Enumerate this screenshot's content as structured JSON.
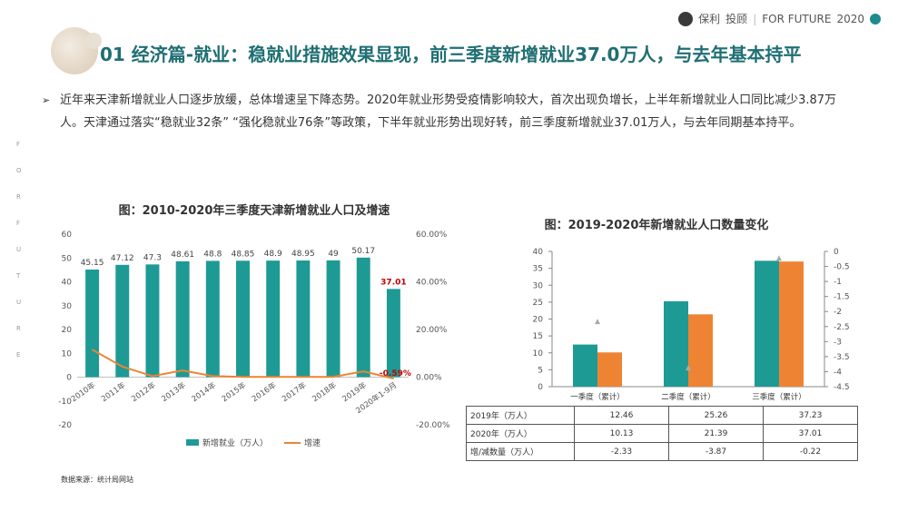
{
  "header": {
    "section": "01 经济篇-就业：",
    "headline": "稳就业措施效果显现，前三季度新增就业37.0万人，与去年基本持平",
    "brand_name": "保利",
    "brand_sub": "投顾",
    "tagline": "FOR FUTURE",
    "year": "2020"
  },
  "side_letters": [
    "F",
    "O",
    "R",
    "F",
    "U",
    "T",
    "U",
    "R",
    "E"
  ],
  "paragraph": {
    "bullet": "➢",
    "text": "近年来天津新增就业人口逐步放缓，总体增速呈下降态势。2020年就业形势受疫情影响较大，首次出现负增长，上半年新增就业人口同比减少3.87万人。天津通过落实“稳就业32条”  “强化稳就业76条”等政策，下半年就业形势出现好转，前三季度新增就业37.01万人，与去年同期基本持平。"
  },
  "source": "数据来源：统计局网站",
  "colors": {
    "teal": "#1e9a95",
    "orange": "#ee8433",
    "title": "#1f6f73",
    "gray_marker": "#a9a9a9"
  },
  "chart_data": [
    {
      "type": "bar",
      "title": "图：2010-2020年三季度天津新增就业人口及增速",
      "categories": [
        "2010年",
        "2011年",
        "2012年",
        "2013年",
        "2014年",
        "2015年",
        "2016年",
        "2017年",
        "2018年",
        "2019年",
        "2020年1-9月"
      ],
      "series": [
        {
          "name": "新增就业（万人）",
          "type": "bar",
          "axis": "left",
          "values": [
            45.15,
            47.12,
            47.3,
            48.61,
            48.8,
            48.85,
            48.9,
            48.95,
            49,
            50.17,
            37.01
          ],
          "labels": [
            "45.15",
            "47.12",
            "47.3",
            "48.61",
            "48.8",
            "48.85",
            "48.9",
            "48.95",
            "49",
            "50.17",
            "37.01"
          ]
        },
        {
          "name": "增速",
          "type": "line",
          "axis": "right",
          "values": [
            11.5,
            4.4,
            0.4,
            2.8,
            0.4,
            0.1,
            0.1,
            0.1,
            0.1,
            2.4,
            -0.59
          ],
          "last_label": "-0.59%"
        }
      ],
      "y_left": {
        "min": -20,
        "max": 60,
        "ticks": [
          "-20",
          "-10",
          "0",
          "10",
          "20",
          "30",
          "40",
          "50",
          "60"
        ]
      },
      "y_right": {
        "min": -20,
        "max": 60,
        "ticks": [
          "-20.00%",
          "0.00%",
          "20.00%",
          "40.00%",
          "60.00%"
        ]
      },
      "legend": [
        "新增就业（万人）",
        "增速"
      ]
    },
    {
      "type": "bar",
      "title": "图：2019-2020年新增就业人口数量变化",
      "categories": [
        "一季度（累计）",
        "二季度（累计）",
        "三季度（累计）"
      ],
      "series": [
        {
          "name": "2019年（万人）",
          "values": [
            12.46,
            25.26,
            37.23
          ],
          "labels": [
            "12.46",
            "25.26",
            "37.23"
          ],
          "axis": "left"
        },
        {
          "name": "2020年（万人）",
          "values": [
            10.13,
            21.39,
            37.01
          ],
          "labels": [
            "10.13",
            "21.39",
            "37.01"
          ],
          "axis": "left"
        },
        {
          "name": "增/减数量（万人）",
          "values": [
            -2.33,
            -3.87,
            -0.22
          ],
          "labels": [
            "-2.33",
            "-3.87",
            "-0.22"
          ],
          "axis": "right",
          "marker": "triangle"
        }
      ],
      "y_left": {
        "min": 0,
        "max": 40,
        "ticks": [
          "0",
          "5",
          "10",
          "15",
          "20",
          "25",
          "30",
          "35",
          "40"
        ]
      },
      "y_right": {
        "min": -4.5,
        "max": 0,
        "ticks": [
          "0",
          "-0.5",
          "-1",
          "-1.5",
          "-2",
          "-2.5",
          "-3",
          "-3.5",
          "-4",
          "-4.5"
        ]
      }
    }
  ]
}
